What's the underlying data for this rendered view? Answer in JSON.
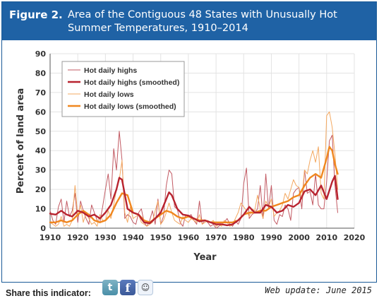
{
  "header": {
    "figure_label": "Figure 2.",
    "title": "Area of the Contiguous 48 States with Unusually Hot Summer Temperatures, 1910–2014"
  },
  "colors": {
    "header_bg": "#1f62a5",
    "highs": "#b8232f",
    "highs_thin": "#c25a63",
    "lows": "#f0871f",
    "lows_thin": "#f3a860"
  },
  "footer": {
    "share_label": "Share this indicator:",
    "share_icons": [
      "twitter-icon",
      "facebook-icon",
      "reddit-icon"
    ],
    "twitter_glyph": "t",
    "facebook_glyph": "f",
    "reddit_glyph": "☺",
    "web_update": "Web update: June 2015"
  },
  "chart_data": {
    "type": "line",
    "title": "",
    "xlabel": "Year",
    "ylabel": "Percent of land area",
    "xlim": [
      1910,
      2020
    ],
    "ylim": [
      0,
      90
    ],
    "xticks": [
      1910,
      1920,
      1930,
      1940,
      1950,
      1960,
      1970,
      1980,
      1990,
      2000,
      2010,
      2020
    ],
    "yticks": [
      0,
      10,
      20,
      30,
      40,
      50,
      60,
      70,
      80,
      90
    ],
    "grid": true,
    "legend_position": "top-left",
    "series": [
      {
        "name": "Hot daily highs",
        "style": "thin",
        "color": "#c25a63",
        "x": [
          1910,
          1911,
          1912,
          1913,
          1914,
          1915,
          1916,
          1917,
          1918,
          1919,
          1920,
          1921,
          1922,
          1923,
          1924,
          1925,
          1926,
          1927,
          1928,
          1929,
          1930,
          1931,
          1932,
          1933,
          1934,
          1935,
          1936,
          1937,
          1938,
          1939,
          1940,
          1941,
          1942,
          1943,
          1944,
          1945,
          1946,
          1947,
          1948,
          1949,
          1950,
          1951,
          1952,
          1953,
          1954,
          1955,
          1956,
          1957,
          1958,
          1959,
          1960,
          1961,
          1962,
          1963,
          1964,
          1965,
          1966,
          1967,
          1968,
          1969,
          1970,
          1971,
          1972,
          1973,
          1974,
          1975,
          1976,
          1977,
          1978,
          1979,
          1980,
          1981,
          1982,
          1983,
          1984,
          1985,
          1986,
          1987,
          1988,
          1989,
          1990,
          1991,
          1992,
          1993,
          1994,
          1995,
          1996,
          1997,
          1998,
          1999,
          2000,
          2001,
          2002,
          2003,
          2004,
          2005,
          2006,
          2007,
          2008,
          2009,
          2010,
          2011,
          2012,
          2013,
          2014
        ],
        "values": [
          9,
          4,
          2,
          11,
          15,
          3,
          14,
          6,
          9,
          18,
          3,
          14,
          9,
          5,
          2,
          12,
          8,
          4,
          3,
          11,
          20,
          28,
          15,
          41,
          30,
          50,
          35,
          5,
          7,
          6,
          3,
          2,
          8,
          10,
          3,
          1,
          4,
          9,
          2,
          15,
          2,
          6,
          22,
          30,
          28,
          11,
          10,
          3,
          1,
          7,
          6,
          7,
          4,
          2,
          14,
          2,
          4,
          3,
          1,
          2,
          0,
          1,
          2,
          3,
          5,
          2,
          1,
          4,
          2,
          5,
          23,
          31,
          5,
          7,
          8,
          10,
          22,
          5,
          28,
          10,
          22,
          4,
          2,
          7,
          6,
          12,
          10,
          4,
          18,
          20,
          21,
          10,
          30,
          18,
          19,
          12,
          28,
          12,
          10,
          10,
          24,
          45,
          48,
          22,
          8
        ]
      },
      {
        "name": "Hot daily highs (smoothed)",
        "style": "thick",
        "color": "#b8232f",
        "x": [
          1910,
          1912,
          1914,
          1916,
          1918,
          1920,
          1922,
          1924,
          1926,
          1928,
          1930,
          1932,
          1934,
          1935,
          1936,
          1938,
          1940,
          1942,
          1944,
          1946,
          1948,
          1950,
          1952,
          1953,
          1954,
          1956,
          1958,
          1960,
          1962,
          1964,
          1966,
          1968,
          1970,
          1972,
          1974,
          1976,
          1978,
          1980,
          1982,
          1984,
          1986,
          1988,
          1990,
          1992,
          1994,
          1996,
          1998,
          2000,
          2002,
          2004,
          2006,
          2008,
          2010,
          2012,
          2013,
          2014
        ],
        "values": [
          7.5,
          7,
          9,
          7,
          6,
          9,
          8,
          6,
          7,
          5,
          8,
          12,
          20,
          26,
          25,
          10,
          8,
          7,
          3,
          2.5,
          5,
          8,
          15,
          18.5,
          17,
          10,
          7,
          6.5,
          5,
          3.5,
          4,
          3,
          2,
          2,
          1.5,
          2,
          4,
          7,
          11,
          8,
          8,
          12,
          11,
          8,
          9,
          12,
          11,
          13,
          19,
          20,
          17,
          22,
          15,
          24,
          27,
          15
        ]
      },
      {
        "name": "Hot daily lows",
        "style": "thin",
        "color": "#f3a860",
        "x": [
          1910,
          1911,
          1912,
          1913,
          1914,
          1915,
          1916,
          1917,
          1918,
          1919,
          1920,
          1921,
          1922,
          1923,
          1924,
          1925,
          1926,
          1927,
          1928,
          1929,
          1930,
          1931,
          1932,
          1933,
          1934,
          1935,
          1936,
          1937,
          1938,
          1939,
          1940,
          1941,
          1942,
          1943,
          1944,
          1945,
          1946,
          1947,
          1948,
          1949,
          1950,
          1951,
          1952,
          1953,
          1954,
          1955,
          1956,
          1957,
          1958,
          1959,
          1960,
          1961,
          1962,
          1963,
          1964,
          1965,
          1966,
          1967,
          1968,
          1969,
          1970,
          1971,
          1972,
          1973,
          1974,
          1975,
          1976,
          1977,
          1978,
          1979,
          1980,
          1981,
          1982,
          1983,
          1984,
          1985,
          1986,
          1987,
          1988,
          1989,
          1990,
          1991,
          1992,
          1993,
          1994,
          1995,
          1996,
          1997,
          1998,
          1999,
          2000,
          2001,
          2002,
          2003,
          2004,
          2005,
          2006,
          2007,
          2008,
          2009,
          2010,
          2011,
          2012,
          2013,
          2014
        ],
        "values": [
          3,
          2,
          1,
          2,
          6,
          1,
          2,
          1,
          4,
          22,
          6,
          12,
          3,
          8,
          5,
          2,
          3,
          1,
          7,
          4,
          4,
          9,
          5,
          12,
          20,
          25,
          35,
          8,
          3,
          11,
          5,
          6,
          7,
          3,
          2,
          1,
          2,
          3,
          9,
          14,
          2,
          4,
          8,
          13,
          8,
          4,
          3,
          2,
          6,
          4,
          3,
          5,
          4,
          3,
          7,
          2,
          3,
          4,
          3,
          4,
          1,
          2,
          1,
          4,
          3,
          1,
          2,
          5,
          8,
          13,
          11,
          9,
          6,
          10,
          9,
          17,
          10,
          5,
          14,
          11,
          15,
          6,
          8,
          9,
          12,
          18,
          15,
          20,
          25,
          22,
          21,
          15,
          30,
          28,
          35,
          40,
          34,
          42,
          18,
          15,
          58,
          60,
          52,
          38,
          20
        ]
      },
      {
        "name": "Hot daily lows (smoothed)",
        "style": "thick",
        "color": "#f0871f",
        "x": [
          1910,
          1912,
          1914,
          1916,
          1918,
          1920,
          1922,
          1924,
          1926,
          1928,
          1930,
          1932,
          1934,
          1936,
          1938,
          1940,
          1942,
          1944,
          1946,
          1948,
          1950,
          1952,
          1954,
          1956,
          1958,
          1960,
          1962,
          1964,
          1966,
          1968,
          1970,
          1972,
          1974,
          1976,
          1978,
          1980,
          1982,
          1984,
          1986,
          1988,
          1990,
          1992,
          1994,
          1996,
          1998,
          2000,
          2002,
          2004,
          2006,
          2008,
          2010,
          2011,
          2012,
          2013,
          2014
        ],
        "values": [
          3,
          3,
          4,
          3,
          4,
          7,
          9,
          7,
          4,
          3,
          4,
          7,
          13,
          18,
          17,
          8,
          7,
          4,
          3,
          5,
          7,
          9,
          8,
          6,
          5,
          6,
          5,
          4,
          4,
          3,
          3,
          3,
          3,
          3,
          4,
          7,
          8,
          8,
          9,
          9,
          11,
          12,
          13,
          14,
          16,
          17,
          22,
          26,
          28,
          26,
          36,
          42,
          40,
          33,
          28
        ]
      }
    ]
  }
}
